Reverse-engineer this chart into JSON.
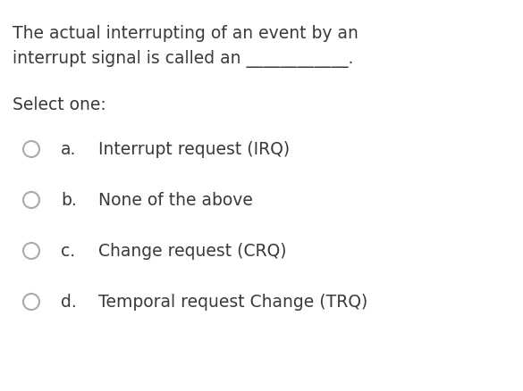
{
  "background_color": "#ffffff",
  "question_line1": "The actual interrupting of an event by an",
  "question_line2": "interrupt signal is called an",
  "question_underline": "____________.",
  "select_one_label": "Select one:",
  "options": [
    {
      "letter": "a.",
      "text": "Interrupt request (IRQ)"
    },
    {
      "letter": "b.",
      "text": "None of the above"
    },
    {
      "letter": "c.",
      "text": "Change request (CRQ)"
    },
    {
      "letter": "d.",
      "text": "Temporal request Change (TRQ)"
    }
  ],
  "text_color": "#3a3a3a",
  "circle_edge_color": "#aaaaaa",
  "font_size_question": 13.5,
  "font_size_select": 13.5,
  "font_size_options": 13.5,
  "fig_width": 5.85,
  "fig_height": 4.39,
  "dpi": 100
}
